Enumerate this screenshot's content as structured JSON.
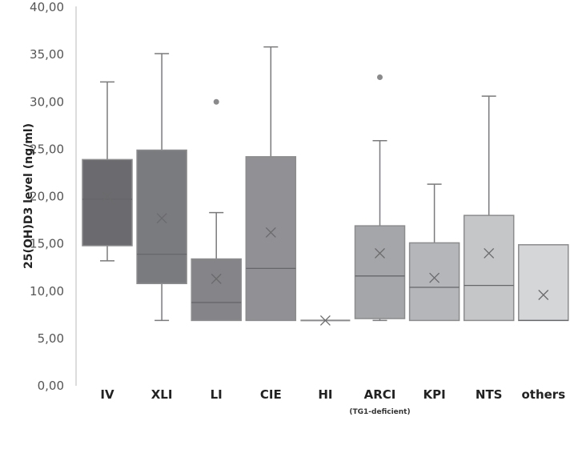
{
  "chart_data": {
    "type": "box",
    "title": "",
    "xlabel": "",
    "ylabel": "25(OH)D3 level (ng/ml)",
    "ylim": [
      0,
      40
    ],
    "yticks": [
      "0,00",
      "5,00",
      "10,00",
      "15,00",
      "20,00",
      "25,00",
      "30,00",
      "35,00",
      "40,00"
    ],
    "grid": false,
    "categories": [
      {
        "label": "IV",
        "sublabel": "",
        "min": 13.2,
        "q1": 14.8,
        "median": 19.7,
        "q3": 23.9,
        "max": 32.1,
        "mean": 20.0,
        "outliers": [],
        "color": "#6b6b6f"
      },
      {
        "label": "XLI",
        "sublabel": "",
        "min": 6.9,
        "q1": 10.8,
        "median": 13.9,
        "q3": 24.9,
        "max": 35.1,
        "mean": 17.7,
        "outliers": [],
        "color": "#7a7b7f"
      },
      {
        "label": "LI",
        "sublabel": "",
        "min": 6.9,
        "q1": 6.9,
        "median": 8.8,
        "q3": 13.4,
        "max": 18.3,
        "mean": 11.3,
        "outliers": [
          30.0
        ],
        "color": "#858589"
      },
      {
        "label": "CIE",
        "sublabel": "",
        "min": 6.9,
        "q1": 6.9,
        "median": 12.4,
        "q3": 24.2,
        "max": 35.8,
        "mean": 16.2,
        "outliers": [],
        "color": "#919195"
      },
      {
        "label": "HI",
        "sublabel": "",
        "min": 6.9,
        "q1": 6.9,
        "median": 6.9,
        "q3": 6.9,
        "max": 6.9,
        "mean": 6.9,
        "outliers": [],
        "color": "#8a8a8c"
      },
      {
        "label": "ARCI",
        "sublabel": "(TG1-deficient)",
        "min": 6.9,
        "q1": 7.1,
        "median": 11.6,
        "q3": 16.9,
        "max": 25.9,
        "mean": 14.0,
        "outliers": [
          32.6
        ],
        "color": "#a5a6a9"
      },
      {
        "label": "KPI",
        "sublabel": "",
        "min": 6.9,
        "q1": 6.9,
        "median": 10.4,
        "q3": 15.1,
        "max": 21.3,
        "mean": 11.4,
        "outliers": [],
        "color": "#b5b6b9"
      },
      {
        "label": "NTS",
        "sublabel": "",
        "min": 6.9,
        "q1": 6.9,
        "median": 10.6,
        "q3": 18.0,
        "max": 30.6,
        "mean": 14.0,
        "outliers": [],
        "color": "#c5c6c8"
      },
      {
        "label": "others",
        "sublabel": "",
        "min": 6.9,
        "q1": 6.9,
        "median": 6.9,
        "q3": 14.9,
        "max": 14.9,
        "mean": 9.6,
        "outliers": [],
        "color": "#d5d6d8"
      }
    ]
  }
}
